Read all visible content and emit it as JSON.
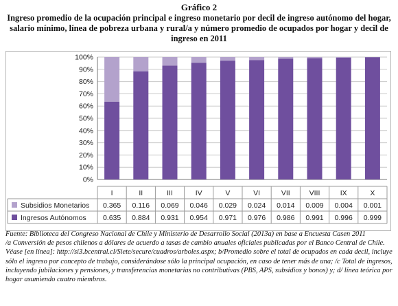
{
  "figure": {
    "label": "Gráfico 2",
    "title": "Ingreso promedio de la ocupación principal e ingreso monetario por decil de ingreso autónomo del hogar, salario mínimo, línea de pobreza urbana y rural/a y número promedio de ocupados por hogar y decil de ingreso en 2011"
  },
  "colors": {
    "subsidios": "#b3a2cc",
    "ingresos": "#6f4f9e",
    "grid": "#c8c8c8",
    "table_border": "#9a9a9a"
  },
  "chart_data": {
    "type": "bar",
    "stacked": true,
    "categories": [
      "I",
      "II",
      "III",
      "IV",
      "V",
      "VI",
      "VII",
      "VIII",
      "IX",
      "X"
    ],
    "series": [
      {
        "name": "Ingresos Autónomos",
        "values": [
          0.635,
          0.884,
          0.931,
          0.954,
          0.971,
          0.976,
          0.986,
          0.991,
          0.996,
          0.999
        ],
        "color": "#6f4f9e"
      },
      {
        "name": "Subsidios Monetarios",
        "values": [
          0.365,
          0.116,
          0.069,
          0.046,
          0.029,
          0.024,
          0.014,
          0.009,
          0.004,
          0.001
        ],
        "color": "#b3a2cc"
      }
    ],
    "ylim": [
      0,
      1
    ],
    "yticks": [
      0,
      0.1,
      0.2,
      0.3,
      0.4,
      0.5,
      0.6,
      0.7,
      0.8,
      0.9,
      1.0
    ],
    "ytick_labels": [
      "0%",
      "10%",
      "20%",
      "30%",
      "40%",
      "50%",
      "60%",
      "70%",
      "80%",
      "90%",
      "100%"
    ],
    "grid": true,
    "data_table": {
      "rows": [
        {
          "series": "Subsidios Monetarios",
          "cells": [
            "0.365",
            "0.116",
            "0.069",
            "0.046",
            "0.029",
            "0.024",
            "0.014",
            "0.009",
            "0.004",
            "0.001"
          ]
        },
        {
          "series": "Ingresos Autónomos",
          "cells": [
            "0.635",
            "0.884",
            "0.931",
            "0.954",
            "0.971",
            "0.976",
            "0.986",
            "0.991",
            "0.996",
            "0.999"
          ]
        }
      ]
    }
  },
  "notes": {
    "source": "Fuente: Biblioteca del Congreso Nacional de Chile y Ministerio de Desarrollo Social (2013a) en base a Encuesta Casen 2011",
    "footnote": "/a Conversión de pesos chilenos a dólares de acuerdo a tasas de cambio anuales oficiales publicadas por el Banco Central de Chile. Véase [en línea]: http://si3.bcentral.cl/Siete/secure/cuadros/arboles.aspx; b/Promedio sobre el total de ocupados en cada decil, incluye sólo el ingreso por concepto de trabajo, considerándose sólo la principal ocupación, en caso de tener más de una; /c Total de ingresos, incluyendo jubilaciones y pensiones, y transferencias monetarias no contributivas (PBS, APS, subsidios y bonos) y; d/ línea teórica por hogar asumiendo cuatro miembros."
  }
}
